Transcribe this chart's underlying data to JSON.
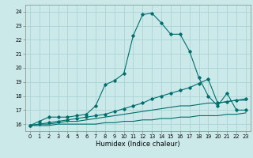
{
  "title": "",
  "xlabel": "Humidex (Indice chaleur)",
  "bg_color": "#cce9e9",
  "grid_color": "#aad4d4",
  "line_color": "#006e6e",
  "xlim": [
    -0.5,
    23.5
  ],
  "ylim": [
    15.5,
    24.5
  ],
  "xticks": [
    0,
    1,
    2,
    3,
    4,
    5,
    6,
    7,
    8,
    9,
    10,
    11,
    12,
    13,
    14,
    15,
    16,
    17,
    18,
    19,
    20,
    21,
    22,
    23
  ],
  "yticks": [
    16,
    17,
    18,
    19,
    20,
    21,
    22,
    23,
    24
  ],
  "line1_x": [
    0,
    1,
    2,
    3,
    4,
    5,
    6,
    7,
    8,
    9,
    10,
    11,
    12,
    13,
    14,
    15,
    16,
    17,
    18,
    19,
    20,
    21,
    22,
    23
  ],
  "line1_y": [
    15.9,
    16.2,
    16.5,
    16.5,
    16.5,
    16.6,
    16.7,
    17.3,
    18.8,
    19.1,
    19.6,
    22.3,
    23.8,
    23.9,
    23.2,
    22.4,
    22.4,
    21.2,
    19.3,
    18.0,
    17.3,
    18.2,
    17.0,
    17.0
  ],
  "line2_x": [
    0,
    1,
    2,
    3,
    4,
    5,
    6,
    7,
    8,
    9,
    10,
    11,
    12,
    13,
    14,
    15,
    16,
    17,
    18,
    19,
    20,
    21,
    22,
    23
  ],
  "line2_y": [
    15.9,
    16.0,
    16.1,
    16.2,
    16.3,
    16.4,
    16.5,
    16.6,
    16.7,
    16.9,
    17.1,
    17.3,
    17.5,
    17.8,
    18.0,
    18.2,
    18.4,
    18.6,
    18.9,
    19.2,
    17.5,
    17.6,
    17.7,
    17.8
  ],
  "line3_x": [
    0,
    1,
    2,
    3,
    4,
    5,
    6,
    7,
    8,
    9,
    10,
    11,
    12,
    13,
    14,
    15,
    16,
    17,
    18,
    19,
    20,
    21,
    22,
    23
  ],
  "line3_y": [
    15.9,
    16.0,
    16.0,
    16.1,
    16.2,
    16.2,
    16.3,
    16.4,
    16.5,
    16.6,
    16.7,
    16.8,
    16.9,
    17.0,
    17.1,
    17.2,
    17.3,
    17.3,
    17.4,
    17.5,
    17.5,
    17.6,
    17.7,
    17.7
  ],
  "line4_x": [
    0,
    1,
    2,
    3,
    4,
    5,
    6,
    7,
    8,
    9,
    10,
    11,
    12,
    13,
    14,
    15,
    16,
    17,
    18,
    19,
    20,
    21,
    22,
    23
  ],
  "line4_y": [
    15.9,
    15.9,
    15.9,
    16.0,
    16.0,
    16.0,
    16.0,
    16.0,
    16.1,
    16.1,
    16.2,
    16.2,
    16.3,
    16.3,
    16.4,
    16.4,
    16.5,
    16.5,
    16.6,
    16.6,
    16.6,
    16.7,
    16.7,
    16.8
  ],
  "xlabel_fontsize": 6.0,
  "tick_fontsize": 4.8,
  "marker_size": 1.8,
  "line_width": 0.8
}
